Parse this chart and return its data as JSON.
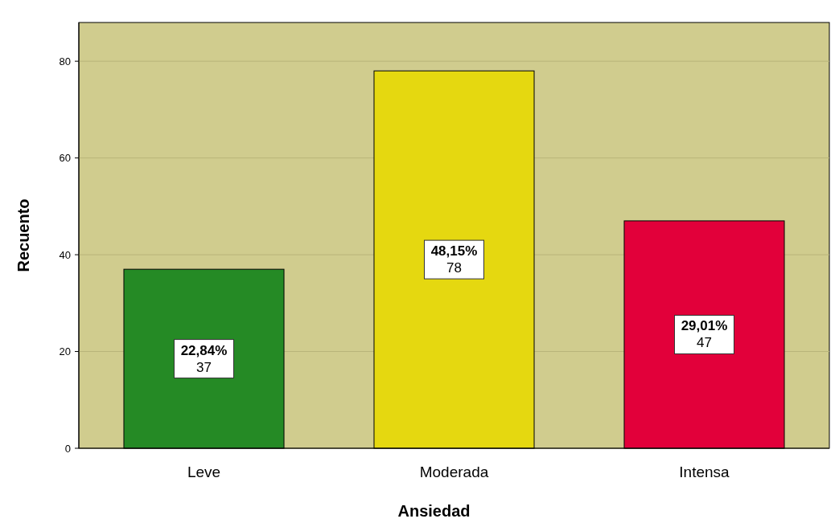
{
  "chart_data": {
    "type": "bar",
    "xlabel": "Ansiedad",
    "ylabel": "Recuento",
    "categories": [
      "Leve",
      "Moderada",
      "Intensa"
    ],
    "values": [
      37,
      78,
      47
    ],
    "colors": [
      "#258a25",
      "#e5d810",
      "#e2003a"
    ],
    "value_labels": [
      "22,84%\n37",
      "48,15%\n78",
      "29,01%\n47"
    ],
    "ylim": [
      0,
      88
    ],
    "yticks": [
      0,
      20,
      40,
      60,
      80
    ],
    "grid": "y"
  }
}
